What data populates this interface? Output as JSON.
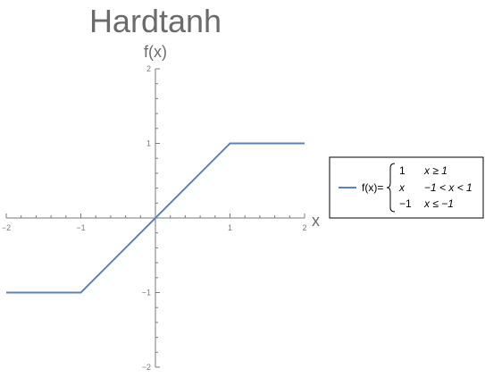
{
  "chart_data": {
    "type": "line",
    "title": "Hardtanh",
    "xlabel": "x",
    "ylabel": "f(x)",
    "xlim": [
      -2,
      2
    ],
    "ylim": [
      -2,
      2
    ],
    "x_ticks": [
      -2,
      -1,
      1,
      2
    ],
    "y_ticks": [
      -2,
      -1,
      1,
      2
    ],
    "x_tick_labels": [
      "−2",
      "−1",
      "1",
      "2"
    ],
    "y_tick_labels": [
      "−2",
      "−1",
      "1",
      "2"
    ],
    "grid": false,
    "legend_position": "right",
    "series": [
      {
        "x": [
          -2,
          -1,
          1,
          2
        ],
        "y": [
          -1,
          -1,
          1,
          1
        ]
      }
    ],
    "colors": {
      "series": "#5e81b5"
    },
    "legend": {
      "prefix": "f(x)=",
      "cases": [
        {
          "value": "1",
          "condition": "x ≥ 1"
        },
        {
          "value": "x",
          "condition": "−1 < x < 1"
        },
        {
          "value": "−1",
          "condition": "x ≤ −1"
        }
      ]
    }
  }
}
